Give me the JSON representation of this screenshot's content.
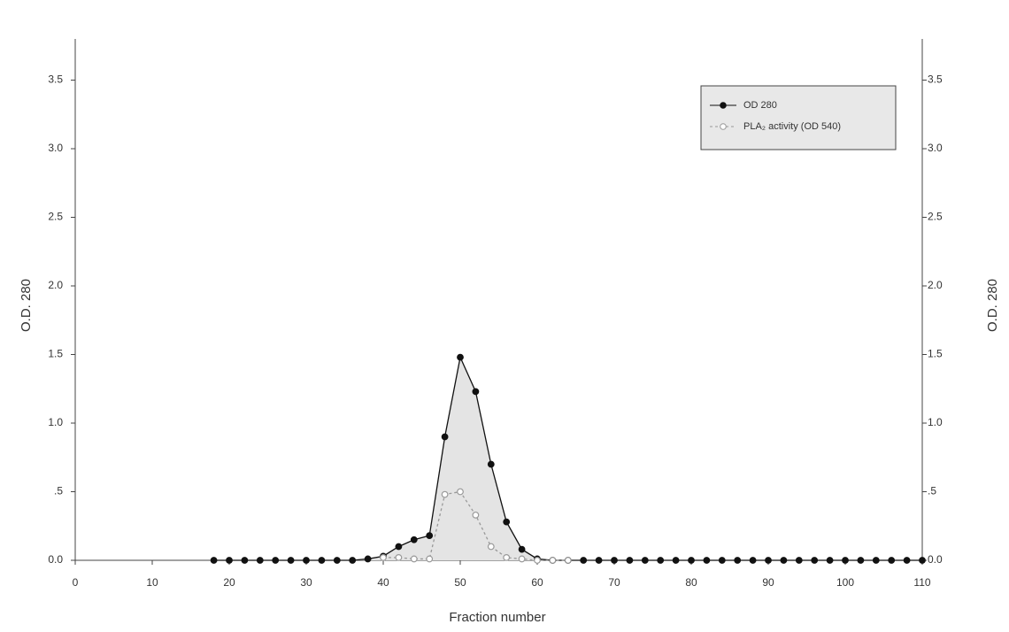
{
  "chart_data": {
    "type": "line",
    "xlabel": "Fraction number",
    "ylabel": "O.D. 280",
    "y2label": "O.D. 280",
    "xlim": [
      0,
      110
    ],
    "xticks": [
      0,
      10,
      20,
      30,
      40,
      50,
      60,
      70,
      80,
      90,
      100,
      110
    ],
    "ylim": [
      0,
      3.8
    ],
    "yticks": [
      {
        "value": 0,
        "label": "0.0"
      },
      {
        "value": 0.5,
        "label": ".5"
      },
      {
        "value": 1,
        "label": "1.0"
      },
      {
        "value": 1.5,
        "label": "1.5"
      },
      {
        "value": 2,
        "label": "2.0"
      },
      {
        "value": 2.5,
        "label": "2.5"
      },
      {
        "value": 3,
        "label": "3.0"
      },
      {
        "value": 3.5,
        "label": "3.5"
      }
    ],
    "y2lim": [
      0,
      3.8
    ],
    "y2ticks": [
      {
        "value": 0,
        "label": "0.0"
      },
      {
        "value": 0.5,
        "label": ".5"
      },
      {
        "value": 1,
        "label": "1.0"
      },
      {
        "value": 1.5,
        "label": "1.5"
      },
      {
        "value": 2,
        "label": "2.0"
      },
      {
        "value": 2.5,
        "label": "2.5"
      },
      {
        "value": 3,
        "label": "3.0"
      },
      {
        "value": 3.5,
        "label": "3.5"
      }
    ],
    "legend": "upper right",
    "series": [
      {
        "name": "OD 280",
        "color": "#111111",
        "marker": "filled",
        "shaded": true,
        "x": [
          18,
          20,
          22,
          24,
          26,
          28,
          30,
          32,
          34,
          36,
          38,
          40,
          42,
          44,
          46,
          48,
          50,
          52,
          54,
          56,
          58,
          60,
          62,
          64,
          66,
          68,
          70,
          72,
          74,
          76,
          78,
          80,
          82,
          84,
          86,
          88,
          90,
          92,
          94,
          96,
          98,
          100,
          102,
          104,
          106,
          108,
          110
        ],
        "values": [
          0,
          0,
          0,
          0,
          0,
          0,
          0,
          0,
          0,
          0,
          0.01,
          0.03,
          0.1,
          0.15,
          0.18,
          0.9,
          1.48,
          1.23,
          0.7,
          0.28,
          0.08,
          0.01,
          0,
          0,
          0,
          0,
          0,
          0,
          0,
          0,
          0,
          0,
          0,
          0,
          0,
          0,
          0,
          0,
          0,
          0,
          0,
          0,
          0,
          0,
          0,
          0,
          0
        ]
      },
      {
        "name": "PLA₂ activity (OD 540)",
        "color": "#999999",
        "marker": "open",
        "dashed": true,
        "x": [
          40,
          42,
          44,
          46,
          48,
          50,
          52,
          54,
          56,
          58,
          60,
          62,
          64
        ],
        "values": [
          0.02,
          0.02,
          0.01,
          0.01,
          0.48,
          0.5,
          0.33,
          0.1,
          0.02,
          0.01,
          0,
          0,
          0
        ]
      }
    ]
  }
}
